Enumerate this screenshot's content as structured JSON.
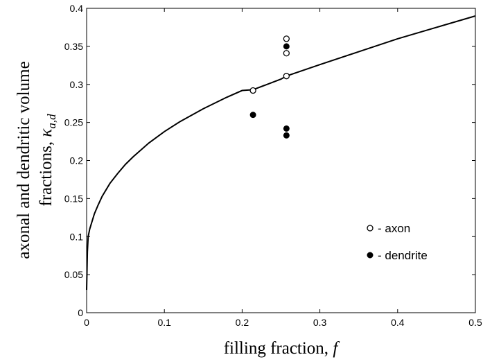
{
  "chart_data": {
    "type": "scatter",
    "title": "",
    "xlabel": "filling fraction, ",
    "xlabel_symbol": "f",
    "ylabel": "axonal and dendritic volume",
    "ylabel_line2": "fractions, ",
    "ylabel_symbol": "κ",
    "ylabel_subscript": "a,d",
    "xlim": [
      0,
      0.5
    ],
    "ylim": [
      0,
      0.4
    ],
    "xticks": [
      "0",
      "0.1",
      "0.2",
      "0.3",
      "0.4",
      "0.5"
    ],
    "yticks": [
      "0",
      "0.05",
      "0.1",
      "0.15",
      "0.2",
      "0.25",
      "0.3",
      "0.35",
      "0.4"
    ],
    "grid": false,
    "legend_position": "bottom-right",
    "curve": {
      "x": [
        0,
        0.001,
        0.002,
        0.004,
        0.007,
        0.01,
        0.015,
        0.02,
        0.03,
        0.04,
        0.05,
        0.06,
        0.08,
        0.1,
        0.12,
        0.15,
        0.18,
        0.2,
        0.214,
        0.25,
        0.257,
        0.3,
        0.35,
        0.4,
        0.45,
        0.5
      ],
      "y": [
        0.03,
        0.08,
        0.1,
        0.11,
        0.12,
        0.13,
        0.142,
        0.153,
        0.17,
        0.183,
        0.195,
        0.205,
        0.223,
        0.238,
        0.251,
        0.268,
        0.283,
        0.292,
        0.293,
        0.307,
        0.311,
        0.326,
        0.343,
        0.36,
        0.375,
        0.39
      ]
    },
    "series": [
      {
        "name": "- axon",
        "marker": "open-circle",
        "points": [
          [
            0.214,
            0.292
          ],
          [
            0.257,
            0.311
          ],
          [
            0.257,
            0.341
          ],
          [
            0.257,
            0.36
          ]
        ]
      },
      {
        "name": "- dendrite",
        "marker": "filled-circle",
        "points": [
          [
            0.214,
            0.26
          ],
          [
            0.257,
            0.35
          ],
          [
            0.257,
            0.242
          ],
          [
            0.257,
            0.233
          ]
        ]
      }
    ],
    "colors": {
      "line": "#000000",
      "marker": "#000000",
      "background": "#ffffff"
    }
  }
}
